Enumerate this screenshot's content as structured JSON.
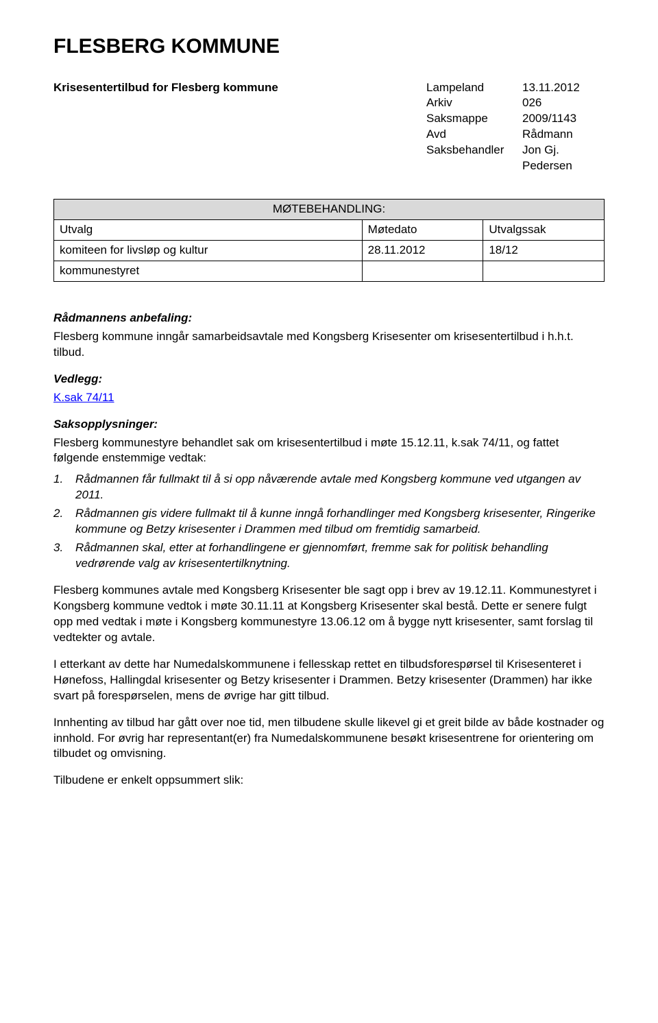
{
  "title": "FLESBERG KOMMUNE",
  "header": {
    "subject": "Krisesentertilbud for Flesberg kommune",
    "meta": [
      {
        "label": "Lampeland",
        "value": "13.11.2012"
      },
      {
        "label": "Arkiv",
        "value": "026"
      },
      {
        "label": "Saksmappe",
        "value": "2009/1143"
      },
      {
        "label": "Avd",
        "value": "Rådmann"
      },
      {
        "label": "Saksbehandler",
        "value": "Jon Gj. Pedersen"
      }
    ]
  },
  "mote": {
    "header": "MØTEBEHANDLING:",
    "cols": {
      "utvalg": "Utvalg",
      "dato": "Møtedato",
      "sak": "Utvalgssak"
    },
    "rows": [
      {
        "utvalg": "komiteen for livsløp og kultur",
        "dato": "28.11.2012",
        "sak": "18/12"
      },
      {
        "utvalg": "kommunestyret",
        "dato": "",
        "sak": ""
      }
    ]
  },
  "anbefaling": {
    "heading": "Rådmannens anbefaling:",
    "text": "Flesberg kommune inngår samarbeidsavtale med Kongsberg Krisesenter om krisesentertilbud i h.h.t. tilbud."
  },
  "vedlegg": {
    "heading": "Vedlegg:",
    "link": "K.sak 74/11"
  },
  "saksoppl": {
    "heading": "Saksopplysninger:",
    "intro": "Flesberg kommunestyre behandlet sak om krisesentertilbud i møte 15.12.11, k.sak 74/11, og fattet følgende enstemmige vedtak:",
    "list": [
      "Rådmannen får fullmakt til å si opp nåværende avtale med Kongsberg kommune ved utgangen av 2011.",
      "Rådmannen gis videre fullmakt til å kunne inngå forhandlinger med Kongsberg krisesenter, Ringerike kommune og Betzy krisesenter i Drammen med tilbud om fremtidig samarbeid.",
      "Rådmannen skal, etter at forhandlingene er gjennomført, fremme sak for politisk behandling vedrørende valg av krisesentertilknytning."
    ],
    "after": "Flesberg kommunes avtale med Kongsberg Krisesenter ble sagt opp i brev av 19.12.11. Kommunestyret i Kongsberg kommune vedtok i møte 30.11.11 at Kongsberg Krisesenter skal bestå. Dette er senere fulgt opp med vedtak i møte i Kongsberg kommunestyre 13.06.12 om å bygge nytt krisesenter, samt forslag til vedtekter og avtale."
  },
  "paragraphs": [
    "I etterkant av dette har Numedalskommunene i fellesskap rettet en tilbudsforespørsel til Krisesenteret i Hønefoss, Hallingdal krisesenter og Betzy krisesenter i Drammen. Betzy krisesenter (Drammen) har ikke svart på forespørselen, mens de øvrige har gitt tilbud.",
    "Innhenting av tilbud har gått over noe tid, men tilbudene skulle likevel gi et greit bilde av både kostnader og innhold. For øvrig har representant(er) fra Numedalskommunene besøkt krisesentrene for orientering om tilbudet og omvisning.",
    "Tilbudene er enkelt oppsummert slik:"
  ],
  "style": {
    "background": "#ffffff",
    "text_color": "#000000",
    "link_color": "#0000ff",
    "table_header_bg": "#d9d9d9",
    "border_color": "#000000",
    "title_fontsize": 30,
    "body_fontsize": 17,
    "font_family": "Arial, Helvetica, sans-serif"
  }
}
